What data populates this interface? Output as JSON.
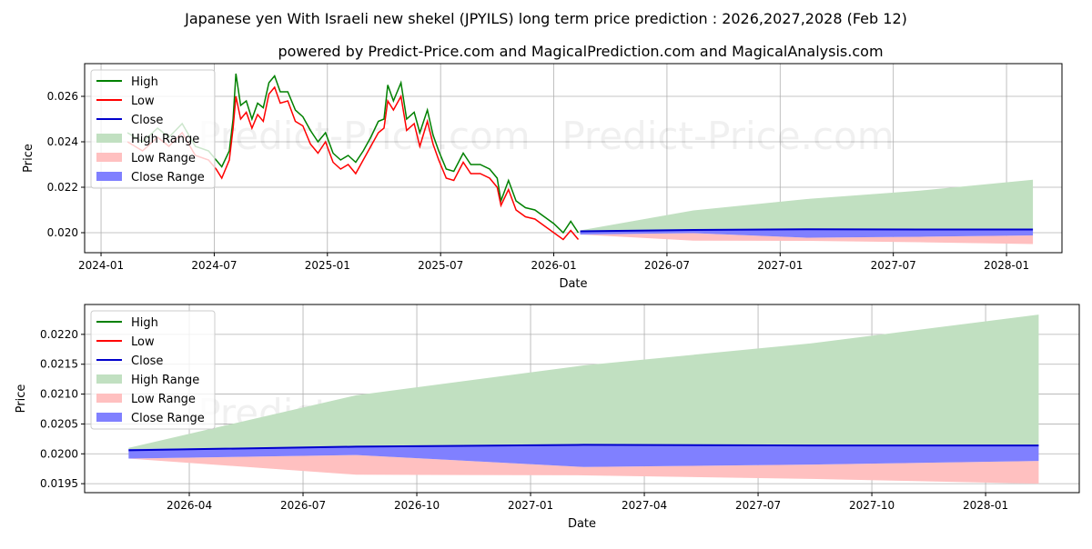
{
  "title": "Japanese yen With Israeli new shekel (JPYILS) long term price prediction : 2026,2027,2028 (Feb 12)",
  "subtitle": "powered by Predict-Price.com and MagicalPrediction.com and MagicalAnalysis.com",
  "watermark": "Predict-Price.com",
  "colors": {
    "high": "#008000",
    "low": "#ff0000",
    "close": "#0000cc",
    "high_range": "#c1e0c1",
    "low_range": "#ffc0c0",
    "close_range": "#8080ff",
    "grid": "#b0b0b0"
  },
  "legend": [
    "High",
    "Low",
    "Close",
    "High Range",
    "Low Range",
    "Close Range"
  ],
  "chart_data": [
    {
      "type": "line",
      "xlabel": "Date",
      "ylabel": "Price",
      "x_unit": "months since 2024-01",
      "xlim": [
        -0.87,
        50.94
      ],
      "ylim": [
        0.01912,
        0.02744
      ],
      "xticks": [
        {
          "v": 0,
          "label": "2024-01"
        },
        {
          "v": 6,
          "label": "2024-07"
        },
        {
          "v": 12,
          "label": "2025-01"
        },
        {
          "v": 18,
          "label": "2025-07"
        },
        {
          "v": 24,
          "label": "2026-01"
        },
        {
          "v": 30,
          "label": "2026-07"
        },
        {
          "v": 36,
          "label": "2027-01"
        },
        {
          "v": 42,
          "label": "2027-07"
        },
        {
          "v": 48,
          "label": "2028-01"
        }
      ],
      "yticks": [
        {
          "v": 0.02,
          "label": "0.020"
        },
        {
          "v": 0.022,
          "label": "0.022"
        },
        {
          "v": 0.024,
          "label": "0.024"
        },
        {
          "v": 0.026,
          "label": "0.026"
        }
      ],
      "grid": true,
      "legend_position": "top-left"
    },
    {
      "type": "area",
      "xlabel": "Date",
      "ylabel": "Price",
      "x_unit": "months since 2024-01",
      "xlim": [
        24.24,
        50.47
      ],
      "ylim": [
        0.01935,
        0.0225
      ],
      "xticks": [
        {
          "v": 27,
          "label": "2026-04"
        },
        {
          "v": 30,
          "label": "2026-07"
        },
        {
          "v": 33,
          "label": "2026-10"
        },
        {
          "v": 36,
          "label": "2027-01"
        },
        {
          "v": 39,
          "label": "2027-04"
        },
        {
          "v": 42,
          "label": "2027-07"
        },
        {
          "v": 45,
          "label": "2027-10"
        },
        {
          "v": 48,
          "label": "2028-01"
        }
      ],
      "yticks": [
        {
          "v": 0.0195,
          "label": "0.0195"
        },
        {
          "v": 0.02,
          "label": "0.0200"
        },
        {
          "v": 0.0205,
          "label": "0.0205"
        },
        {
          "v": 0.021,
          "label": "0.0210"
        },
        {
          "v": 0.0215,
          "label": "0.0215"
        },
        {
          "v": 0.022,
          "label": "0.0220"
        }
      ],
      "grid": true,
      "legend_position": "top-left"
    }
  ],
  "history": {
    "x": [
      1.4,
      2.2,
      3.0,
      3.6,
      4.3,
      5.0,
      5.7,
      6.1,
      6.4,
      6.8,
      7.0,
      7.15,
      7.4,
      7.7,
      8.0,
      8.3,
      8.6,
      8.9,
      9.2,
      9.5,
      9.9,
      10.3,
      10.7,
      11.1,
      11.5,
      11.9,
      12.3,
      12.7,
      13.1,
      13.5,
      13.9,
      14.3,
      14.7,
      15.0,
      15.2,
      15.5,
      15.9,
      16.2,
      16.6,
      16.9,
      17.3,
      17.6,
      17.9,
      18.3,
      18.7,
      19.2,
      19.6,
      20.1,
      20.6,
      21.0,
      21.2,
      21.6,
      22.0,
      22.5,
      23.0,
      23.5,
      24.0,
      24.5,
      24.9,
      25.3
    ],
    "high": [
      0.0244,
      0.024,
      0.0246,
      0.0242,
      0.0248,
      0.0238,
      0.0236,
      0.0232,
      0.0229,
      0.0236,
      0.025,
      0.027,
      0.0256,
      0.0258,
      0.025,
      0.0257,
      0.0255,
      0.0266,
      0.0269,
      0.0262,
      0.0262,
      0.0254,
      0.0251,
      0.0245,
      0.024,
      0.0244,
      0.0235,
      0.0232,
      0.0234,
      0.0231,
      0.0236,
      0.0242,
      0.0249,
      0.025,
      0.0265,
      0.0258,
      0.0266,
      0.025,
      0.0253,
      0.0244,
      0.0254,
      0.0243,
      0.0236,
      0.0228,
      0.0227,
      0.0235,
      0.023,
      0.023,
      0.0228,
      0.0224,
      0.0214,
      0.0223,
      0.0214,
      0.0211,
      0.021,
      0.0207,
      0.0204,
      0.02,
      0.0205,
      0.02
    ],
    "low": [
      0.024,
      0.0236,
      0.0242,
      0.0238,
      0.0244,
      0.0234,
      0.0232,
      0.0228,
      0.0224,
      0.0232,
      0.0246,
      0.026,
      0.025,
      0.0253,
      0.0246,
      0.0252,
      0.0249,
      0.0261,
      0.0264,
      0.0257,
      0.0258,
      0.0249,
      0.0247,
      0.0239,
      0.0235,
      0.024,
      0.0231,
      0.0228,
      0.023,
      0.0226,
      0.0232,
      0.0238,
      0.0244,
      0.0246,
      0.0258,
      0.0254,
      0.026,
      0.0245,
      0.0248,
      0.0238,
      0.0249,
      0.0239,
      0.0232,
      0.0224,
      0.0223,
      0.0231,
      0.0226,
      0.0226,
      0.0224,
      0.022,
      0.0212,
      0.0219,
      0.021,
      0.0207,
      0.0206,
      0.0203,
      0.02,
      0.0197,
      0.0201,
      0.0197
    ]
  },
  "forecast": {
    "x": [
      25.4,
      31.4,
      37.4,
      43.4,
      49.4
    ],
    "high_upper": [
      0.0201,
      0.02098,
      0.02148,
      0.02185,
      0.02233
    ],
    "close_upper": [
      0.02008,
      0.02012,
      0.02015,
      0.02014,
      0.02014
    ],
    "close": [
      0.02006,
      0.02012,
      0.02015,
      0.02014,
      0.02014
    ],
    "close_lower": [
      0.01992,
      0.01998,
      0.01978,
      0.01982,
      0.01988
    ],
    "low_lower": [
      0.01992,
      0.01965,
      0.01964,
      0.01958,
      0.0195
    ]
  }
}
